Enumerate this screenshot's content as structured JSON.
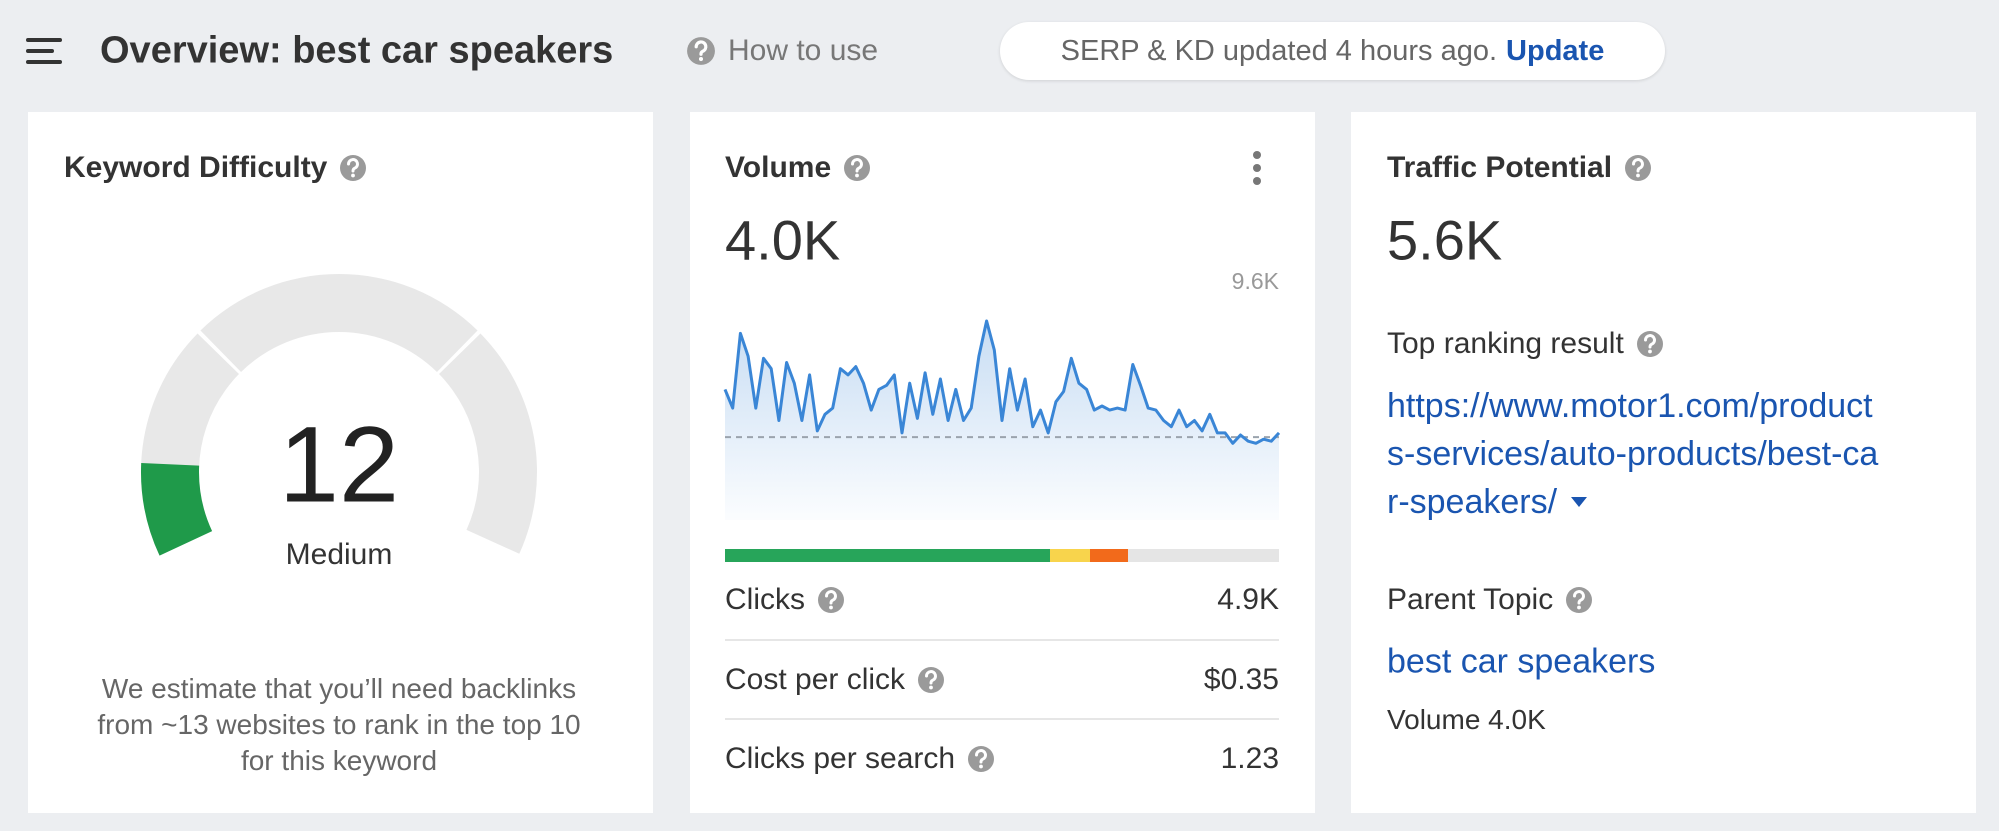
{
  "header": {
    "title": "Overview: best car speakers",
    "help_link": "How to use",
    "status": "SERP & KD updated 4 hours ago.",
    "update_link": "Update"
  },
  "keyword_difficulty": {
    "title": "Keyword Difficulty",
    "value": 12,
    "level": "Medium",
    "note_lines": [
      "We estimate that you’ll need backlinks",
      "from ~13 websites to rank in the top 10",
      "for this keyword"
    ]
  },
  "volume": {
    "title": "Volume",
    "value": {
      "value": 4.0,
      "label": "4.0K"
    },
    "trend": {
      "type": "line",
      "color": "#3a86d6",
      "ylim": [
        0,
        9.6
      ],
      "yticks": [
        {
          "value": 9.6,
          "label": "9.6K"
        }
      ],
      "values": [
        6.3,
        5.4,
        9.0,
        7.9,
        5.4,
        7.8,
        7.3,
        4.8,
        7.6,
        6.6,
        4.8,
        7.0,
        4.3,
        5.1,
        5.4,
        7.3,
        7.0,
        7.4,
        6.6,
        5.3,
        6.3,
        6.5,
        7.0,
        4.2,
        6.6,
        4.9,
        7.1,
        5.1,
        6.8,
        4.8,
        6.3,
        4.8,
        5.4,
        7.9,
        9.6,
        8.2,
        4.8,
        7.3,
        5.3,
        6.8,
        4.5,
        5.3,
        4.2,
        5.7,
        6.2,
        7.8,
        6.6,
        6.3,
        5.3,
        5.5,
        5.3,
        5.4,
        5.3,
        7.5,
        6.5,
        5.4,
        5.3,
        4.8,
        4.5,
        5.3,
        4.5,
        4.8,
        4.3,
        5.1,
        4.2,
        4.2,
        3.7,
        4.1,
        3.8,
        3.7,
        3.9,
        3.8,
        4.2
      ]
    },
    "metrics": [
      {
        "label": "Clicks",
        "value": "4.9K"
      },
      {
        "label": "Cost per click",
        "value": "$0.35"
      },
      {
        "label": "Clicks per search",
        "value": "1.23"
      }
    ]
  },
  "traffic_potential": {
    "title": "Traffic Potential",
    "value": "5.6K",
    "top_ranking_label": "Top ranking result",
    "url_lines": [
      "https://www.motor1.com/product",
      "s-services/auto-products/best-ca",
      "r-speakers/"
    ],
    "parent_topic_label": "Parent Topic",
    "parent_topic": "best car speakers",
    "parent_volume": "Volume 4.0K"
  }
}
